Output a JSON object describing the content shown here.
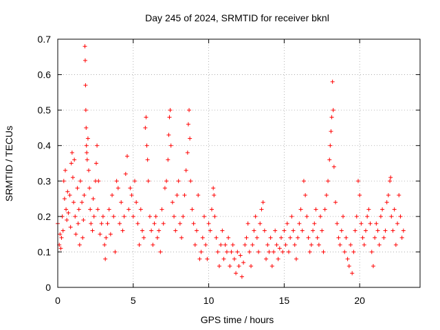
{
  "chart_data": {
    "type": "scatter",
    "title": "Day 245 of 2024, SRMTID for receiver bknl",
    "xlabel": "GPS time / hours",
    "ylabel": "SRMTID / TECUs",
    "xlim": [
      0,
      24
    ],
    "ylim": [
      0,
      0.7
    ],
    "x_ticks": [
      0,
      5,
      10,
      15,
      20
    ],
    "x_tick_labels": [
      "0",
      "5",
      "10",
      "15",
      "20"
    ],
    "y_ticks": [
      0,
      0.1,
      0.2,
      0.3,
      0.4,
      0.5,
      0.6,
      0.7
    ],
    "y_tick_labels": [
      "0",
      "0.1",
      "0.2",
      "0.3",
      "0.4",
      "0.5",
      "0.6",
      "0.7"
    ],
    "grid": true,
    "marker": "plus",
    "series": [
      {
        "name": "bknl",
        "color": "#ff0000",
        "points": [
          [
            0.0,
            0.18
          ],
          [
            0.1,
            0.12
          ],
          [
            0.15,
            0.15
          ],
          [
            0.2,
            0.11
          ],
          [
            0.25,
            0.14
          ],
          [
            0.3,
            0.2
          ],
          [
            0.35,
            0.16
          ],
          [
            0.4,
            0.3
          ],
          [
            0.45,
            0.25
          ],
          [
            0.5,
            0.33
          ],
          [
            0.55,
            0.22
          ],
          [
            0.6,
            0.19
          ],
          [
            0.65,
            0.27
          ],
          [
            0.7,
            0.21
          ],
          [
            0.8,
            0.26
          ],
          [
            0.85,
            0.17
          ],
          [
            0.9,
            0.35
          ],
          [
            0.95,
            0.38
          ],
          [
            1.0,
            0.31
          ],
          [
            1.05,
            0.24
          ],
          [
            1.1,
            0.36
          ],
          [
            1.15,
            0.2
          ],
          [
            1.2,
            0.15
          ],
          [
            1.3,
            0.28
          ],
          [
            1.35,
            0.18
          ],
          [
            1.4,
            0.22
          ],
          [
            1.45,
            0.12
          ],
          [
            1.5,
            0.3
          ],
          [
            1.6,
            0.24
          ],
          [
            1.65,
            0.14
          ],
          [
            1.7,
            0.19
          ],
          [
            1.75,
            0.26
          ],
          [
            1.8,
            0.68
          ],
          [
            1.82,
            0.64
          ],
          [
            1.84,
            0.57
          ],
          [
            1.86,
            0.5
          ],
          [
            1.88,
            0.45
          ],
          [
            1.9,
            0.4
          ],
          [
            1.92,
            0.38
          ],
          [
            1.95,
            0.36
          ],
          [
            2.0,
            0.42
          ],
          [
            2.05,
            0.33
          ],
          [
            2.1,
            0.28
          ],
          [
            2.15,
            0.22
          ],
          [
            2.2,
            0.18
          ],
          [
            2.3,
            0.16
          ],
          [
            2.35,
            0.25
          ],
          [
            2.4,
            0.2
          ],
          [
            2.5,
            0.3
          ],
          [
            2.55,
            0.35
          ],
          [
            2.6,
            0.4
          ],
          [
            2.65,
            0.22
          ],
          [
            2.7,
            0.3
          ],
          [
            2.8,
            0.15
          ],
          [
            2.9,
            0.18
          ],
          [
            3.0,
            0.2
          ],
          [
            3.1,
            0.12
          ],
          [
            3.15,
            0.08
          ],
          [
            3.2,
            0.14
          ],
          [
            3.3,
            0.18
          ],
          [
            3.4,
            0.22
          ],
          [
            3.5,
            0.15
          ],
          [
            3.6,
            0.26
          ],
          [
            3.7,
            0.2
          ],
          [
            3.8,
            0.1
          ],
          [
            3.9,
            0.3
          ],
          [
            4.0,
            0.28
          ],
          [
            4.1,
            0.18
          ],
          [
            4.2,
            0.24
          ],
          [
            4.3,
            0.16
          ],
          [
            4.4,
            0.2
          ],
          [
            4.5,
            0.32
          ],
          [
            4.6,
            0.37
          ],
          [
            4.7,
            0.22
          ],
          [
            4.8,
            0.28
          ],
          [
            4.9,
            0.26
          ],
          [
            5.0,
            0.2
          ],
          [
            5.1,
            0.3
          ],
          [
            5.2,
            0.24
          ],
          [
            5.3,
            0.18
          ],
          [
            5.4,
            0.12
          ],
          [
            5.5,
            0.22
          ],
          [
            5.6,
            0.16
          ],
          [
            5.7,
            0.14
          ],
          [
            5.8,
            0.45
          ],
          [
            5.85,
            0.48
          ],
          [
            5.9,
            0.4
          ],
          [
            5.95,
            0.36
          ],
          [
            6.0,
            0.3
          ],
          [
            6.1,
            0.2
          ],
          [
            6.2,
            0.16
          ],
          [
            6.3,
            0.12
          ],
          [
            6.4,
            0.18
          ],
          [
            6.5,
            0.2
          ],
          [
            6.6,
            0.14
          ],
          [
            6.7,
            0.16
          ],
          [
            6.8,
            0.1
          ],
          [
            6.9,
            0.22
          ],
          [
            7.0,
            0.18
          ],
          [
            7.1,
            0.28
          ],
          [
            7.2,
            0.3
          ],
          [
            7.3,
            0.36
          ],
          [
            7.35,
            0.43
          ],
          [
            7.4,
            0.48
          ],
          [
            7.45,
            0.5
          ],
          [
            7.5,
            0.4
          ],
          [
            7.6,
            0.24
          ],
          [
            7.7,
            0.2
          ],
          [
            7.8,
            0.16
          ],
          [
            7.9,
            0.26
          ],
          [
            8.0,
            0.3
          ],
          [
            8.1,
            0.18
          ],
          [
            8.2,
            0.14
          ],
          [
            8.3,
            0.2
          ],
          [
            8.4,
            0.26
          ],
          [
            8.5,
            0.33
          ],
          [
            8.6,
            0.38
          ],
          [
            8.65,
            0.46
          ],
          [
            8.7,
            0.5
          ],
          [
            8.75,
            0.42
          ],
          [
            8.8,
            0.3
          ],
          [
            8.9,
            0.22
          ],
          [
            9.0,
            0.18
          ],
          [
            9.1,
            0.12
          ],
          [
            9.2,
            0.16
          ],
          [
            9.3,
            0.26
          ],
          [
            9.4,
            0.08
          ],
          [
            9.5,
            0.1
          ],
          [
            9.6,
            0.14
          ],
          [
            9.7,
            0.2
          ],
          [
            9.8,
            0.12
          ],
          [
            9.9,
            0.08
          ],
          [
            10.0,
            0.18
          ],
          [
            10.1,
            0.16
          ],
          [
            10.2,
            0.22
          ],
          [
            10.3,
            0.28
          ],
          [
            10.35,
            0.26
          ],
          [
            10.4,
            0.2
          ],
          [
            10.5,
            0.14
          ],
          [
            10.6,
            0.1
          ],
          [
            10.7,
            0.06
          ],
          [
            10.8,
            0.12
          ],
          [
            10.9,
            0.16
          ],
          [
            11.0,
            0.08
          ],
          [
            11.1,
            0.12
          ],
          [
            11.2,
            0.1
          ],
          [
            11.3,
            0.14
          ],
          [
            11.4,
            0.06
          ],
          [
            11.5,
            0.1
          ],
          [
            11.6,
            0.12
          ],
          [
            11.7,
            0.08
          ],
          [
            11.8,
            0.04
          ],
          [
            11.9,
            0.1
          ],
          [
            12.0,
            0.06
          ],
          [
            12.1,
            0.09
          ],
          [
            12.2,
            0.03
          ],
          [
            12.3,
            0.07
          ],
          [
            12.4,
            0.12
          ],
          [
            12.5,
            0.14
          ],
          [
            12.6,
            0.18
          ],
          [
            12.7,
            0.1
          ],
          [
            12.8,
            0.06
          ],
          [
            12.9,
            0.12
          ],
          [
            13.0,
            0.16
          ],
          [
            13.1,
            0.2
          ],
          [
            13.2,
            0.14
          ],
          [
            13.3,
            0.1
          ],
          [
            13.4,
            0.18
          ],
          [
            13.5,
            0.22
          ],
          [
            13.6,
            0.24
          ],
          [
            13.7,
            0.16
          ],
          [
            13.8,
            0.08
          ],
          [
            13.9,
            0.12
          ],
          [
            14.0,
            0.1
          ],
          [
            14.1,
            0.14
          ],
          [
            14.2,
            0.06
          ],
          [
            14.3,
            0.1
          ],
          [
            14.4,
            0.16
          ],
          [
            14.5,
            0.12
          ],
          [
            14.6,
            0.08
          ],
          [
            14.7,
            0.11
          ],
          [
            14.8,
            0.14
          ],
          [
            14.9,
            0.1
          ],
          [
            15.0,
            0.16
          ],
          [
            15.1,
            0.12
          ],
          [
            15.2,
            0.18
          ],
          [
            15.3,
            0.1
          ],
          [
            15.4,
            0.14
          ],
          [
            15.5,
            0.2
          ],
          [
            15.6,
            0.16
          ],
          [
            15.7,
            0.12
          ],
          [
            15.8,
            0.08
          ],
          [
            15.9,
            0.14
          ],
          [
            16.0,
            0.18
          ],
          [
            16.1,
            0.22
          ],
          [
            16.2,
            0.16
          ],
          [
            16.3,
            0.3
          ],
          [
            16.4,
            0.26
          ],
          [
            16.5,
            0.2
          ],
          [
            16.6,
            0.14
          ],
          [
            16.7,
            0.1
          ],
          [
            16.8,
            0.12
          ],
          [
            16.9,
            0.16
          ],
          [
            17.0,
            0.18
          ],
          [
            17.1,
            0.22
          ],
          [
            17.2,
            0.14
          ],
          [
            17.3,
            0.12
          ],
          [
            17.4,
            0.2
          ],
          [
            17.5,
            0.16
          ],
          [
            17.6,
            0.1
          ],
          [
            17.7,
            0.22
          ],
          [
            17.8,
            0.26
          ],
          [
            17.9,
            0.3
          ],
          [
            18.0,
            0.36
          ],
          [
            18.05,
            0.4
          ],
          [
            18.1,
            0.44
          ],
          [
            18.15,
            0.48
          ],
          [
            18.2,
            0.58
          ],
          [
            18.25,
            0.5
          ],
          [
            18.3,
            0.34
          ],
          [
            18.4,
            0.24
          ],
          [
            18.5,
            0.18
          ],
          [
            18.6,
            0.14
          ],
          [
            18.7,
            0.12
          ],
          [
            18.8,
            0.16
          ],
          [
            18.9,
            0.2
          ],
          [
            19.0,
            0.1
          ],
          [
            19.1,
            0.14
          ],
          [
            19.2,
            0.08
          ],
          [
            19.3,
            0.06
          ],
          [
            19.4,
            0.12
          ],
          [
            19.5,
            0.04
          ],
          [
            19.6,
            0.1
          ],
          [
            19.7,
            0.16
          ],
          [
            19.8,
            0.2
          ],
          [
            19.9,
            0.3
          ],
          [
            20.0,
            0.26
          ],
          [
            20.1,
            0.18
          ],
          [
            20.2,
            0.14
          ],
          [
            20.3,
            0.12
          ],
          [
            20.4,
            0.16
          ],
          [
            20.5,
            0.2
          ],
          [
            20.6,
            0.22
          ],
          [
            20.7,
            0.18
          ],
          [
            20.8,
            0.1
          ],
          [
            20.9,
            0.06
          ],
          [
            21.0,
            0.14
          ],
          [
            21.1,
            0.18
          ],
          [
            21.2,
            0.16
          ],
          [
            21.3,
            0.12
          ],
          [
            21.4,
            0.2
          ],
          [
            21.5,
            0.22
          ],
          [
            21.6,
            0.14
          ],
          [
            21.7,
            0.16
          ],
          [
            21.8,
            0.24
          ],
          [
            21.9,
            0.26
          ],
          [
            22.0,
            0.3
          ],
          [
            22.05,
            0.31
          ],
          [
            22.1,
            0.2
          ],
          [
            22.2,
            0.16
          ],
          [
            22.3,
            0.22
          ],
          [
            22.4,
            0.12
          ],
          [
            22.5,
            0.18
          ],
          [
            22.6,
            0.26
          ],
          [
            22.7,
            0.2
          ],
          [
            22.8,
            0.14
          ],
          [
            22.9,
            0.16
          ]
        ]
      }
    ]
  }
}
